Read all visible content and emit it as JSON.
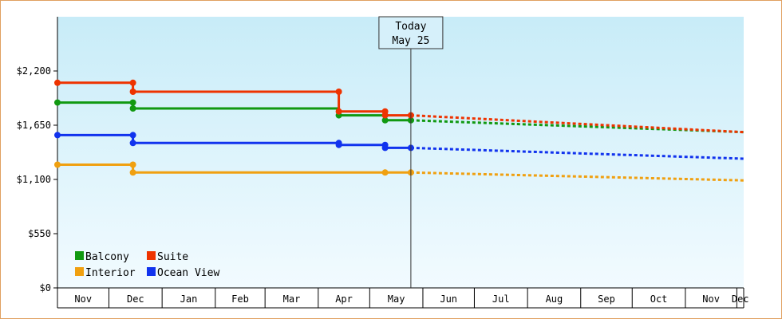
{
  "chart_data": {
    "type": "line",
    "ylim": [
      0,
      2750
    ],
    "y_ticks": [
      "$0",
      "$550",
      "$1,100",
      "$1,650",
      "$2,200"
    ],
    "y_tick_values": [
      0,
      550,
      1100,
      1650,
      2200
    ],
    "x_ticks": [
      "Nov",
      "Dec",
      "Jan",
      "Feb",
      "Mar",
      "Apr",
      "May",
      "Jun",
      "Jul",
      "Aug",
      "Sep",
      "Oct",
      "Nov",
      "Dec"
    ],
    "x_range": [
      "2023-11-01",
      "2024-12-05"
    ],
    "today": {
      "line1": "Today",
      "line2": "May 25",
      "date": "2024-05-25"
    },
    "legend_position": "bottom-left",
    "series": [
      {
        "name": "Balcony",
        "color": "#119911",
        "points": [
          {
            "date": "2023-11-01",
            "value": 1880
          },
          {
            "date": "2023-12-15",
            "value": 1880
          },
          {
            "date": "2023-12-15",
            "value": 1820
          },
          {
            "date": "2024-04-13",
            "value": 1820
          },
          {
            "date": "2024-04-13",
            "value": 1750
          },
          {
            "date": "2024-05-10",
            "value": 1750
          },
          {
            "date": "2024-05-10",
            "value": 1700
          },
          {
            "date": "2024-05-25",
            "value": 1700
          }
        ],
        "forecast": [
          {
            "date": "2024-05-25",
            "value": 1700
          },
          {
            "date": "2024-12-05",
            "value": 1580
          }
        ]
      },
      {
        "name": "Suite",
        "color": "#ee3300",
        "points": [
          {
            "date": "2023-11-01",
            "value": 2080
          },
          {
            "date": "2023-12-15",
            "value": 2080
          },
          {
            "date": "2023-12-15",
            "value": 1990
          },
          {
            "date": "2024-04-13",
            "value": 1990
          },
          {
            "date": "2024-04-13",
            "value": 1790
          },
          {
            "date": "2024-05-10",
            "value": 1790
          },
          {
            "date": "2024-05-10",
            "value": 1750
          },
          {
            "date": "2024-05-25",
            "value": 1750
          }
        ],
        "forecast": [
          {
            "date": "2024-05-25",
            "value": 1750
          },
          {
            "date": "2024-12-05",
            "value": 1580
          }
        ]
      },
      {
        "name": "Interior",
        "color": "#f0a010",
        "points": [
          {
            "date": "2023-11-01",
            "value": 1250
          },
          {
            "date": "2023-12-15",
            "value": 1250
          },
          {
            "date": "2023-12-15",
            "value": 1170
          },
          {
            "date": "2024-05-10",
            "value": 1170
          },
          {
            "date": "2024-05-25",
            "value": 1170
          }
        ],
        "forecast": [
          {
            "date": "2024-05-25",
            "value": 1170
          },
          {
            "date": "2024-12-05",
            "value": 1090
          }
        ]
      },
      {
        "name": "Ocean View",
        "color": "#1133ee",
        "points": [
          {
            "date": "2023-11-01",
            "value": 1550
          },
          {
            "date": "2023-12-15",
            "value": 1550
          },
          {
            "date": "2023-12-15",
            "value": 1470
          },
          {
            "date": "2024-04-13",
            "value": 1470
          },
          {
            "date": "2024-04-13",
            "value": 1450
          },
          {
            "date": "2024-05-10",
            "value": 1450
          },
          {
            "date": "2024-05-10",
            "value": 1420
          },
          {
            "date": "2024-05-25",
            "value": 1420
          }
        ],
        "forecast": [
          {
            "date": "2024-05-25",
            "value": 1420
          },
          {
            "date": "2024-12-05",
            "value": 1310
          }
        ]
      }
    ],
    "markers": [
      {
        "series": "Balcony",
        "date": "2023-11-01",
        "value": 1880
      },
      {
        "series": "Balcony",
        "date": "2023-12-15",
        "value": 1880
      },
      {
        "series": "Balcony",
        "date": "2023-12-15",
        "value": 1820
      },
      {
        "series": "Balcony",
        "date": "2024-04-13",
        "value": 1750
      },
      {
        "series": "Balcony",
        "date": "2024-05-10",
        "value": 1750
      },
      {
        "series": "Balcony",
        "date": "2024-05-10",
        "value": 1700
      },
      {
        "series": "Balcony",
        "date": "2024-05-25",
        "value": 1700
      },
      {
        "series": "Suite",
        "date": "2023-11-01",
        "value": 2080
      },
      {
        "series": "Suite",
        "date": "2023-12-15",
        "value": 2080
      },
      {
        "series": "Suite",
        "date": "2023-12-15",
        "value": 1990
      },
      {
        "series": "Suite",
        "date": "2024-04-13",
        "value": 1990
      },
      {
        "series": "Suite",
        "date": "2024-04-13",
        "value": 1790
      },
      {
        "series": "Suite",
        "date": "2024-05-10",
        "value": 1790
      },
      {
        "series": "Suite",
        "date": "2024-05-10",
        "value": 1750
      },
      {
        "series": "Suite",
        "date": "2024-05-25",
        "value": 1750
      },
      {
        "series": "Interior",
        "date": "2023-11-01",
        "value": 1250
      },
      {
        "series": "Interior",
        "date": "2023-12-15",
        "value": 1250
      },
      {
        "series": "Interior",
        "date": "2023-12-15",
        "value": 1170
      },
      {
        "series": "Interior",
        "date": "2024-05-10",
        "value": 1170
      },
      {
        "series": "Interior",
        "date": "2024-05-25",
        "value": 1170
      },
      {
        "series": "Ocean View",
        "date": "2023-11-01",
        "value": 1550
      },
      {
        "series": "Ocean View",
        "date": "2023-12-15",
        "value": 1550
      },
      {
        "series": "Ocean View",
        "date": "2023-12-15",
        "value": 1470
      },
      {
        "series": "Ocean View",
        "date": "2024-04-13",
        "value": 1470
      },
      {
        "series": "Ocean View",
        "date": "2024-04-13",
        "value": 1450
      },
      {
        "series": "Ocean View",
        "date": "2024-05-10",
        "value": 1450
      },
      {
        "series": "Ocean View",
        "date": "2024-05-10",
        "value": 1420
      },
      {
        "series": "Ocean View",
        "date": "2024-05-25",
        "value": 1420
      }
    ],
    "legend": [
      {
        "name": "Balcony",
        "color": "#119911"
      },
      {
        "name": "Suite",
        "color": "#ee3300"
      },
      {
        "name": "Interior",
        "color": "#f0a010"
      },
      {
        "name": "Ocean View",
        "color": "#1133ee"
      }
    ],
    "background_gradient": [
      "#c8ecf8",
      "#f2fbff"
    ]
  }
}
